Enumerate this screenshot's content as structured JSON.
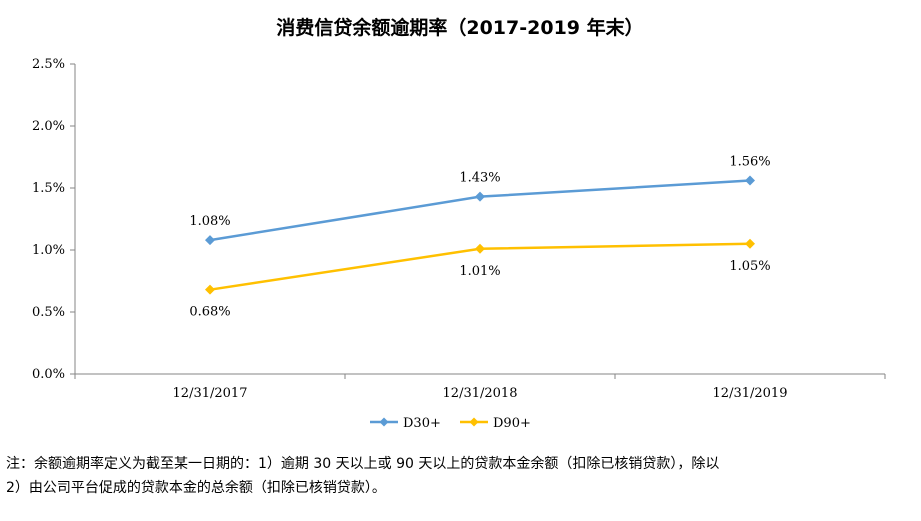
{
  "chart_data": {
    "type": "line",
    "title": "消费信贷余额逾期率（2017-2019 年末）",
    "categories": [
      "12/31/2017",
      "12/31/2018",
      "12/31/2019"
    ],
    "y_ticks": [
      "0.0%",
      "0.5%",
      "1.0%",
      "1.5%",
      "2.0%",
      "2.5%"
    ],
    "ylim": [
      0,
      2.5
    ],
    "grid": false,
    "legend_position": "bottom",
    "series": [
      {
        "name": "D30+",
        "color": "#5B9BD5",
        "marker": "diamond",
        "values": [
          1.08,
          1.43,
          1.56
        ],
        "labels": [
          "1.08%",
          "1.43%",
          "1.56%"
        ],
        "label_position": "above"
      },
      {
        "name": "D90+",
        "color": "#FFC000",
        "marker": "diamond",
        "values": [
          0.68,
          1.01,
          1.05
        ],
        "labels": [
          "0.68%",
          "1.01%",
          "1.05%"
        ],
        "label_position": "below"
      }
    ]
  },
  "note": {
    "line1": "注：余额逾期率定义为截至某一日期的：1）逾期 30 天以上或 90 天以上的贷款本金余额（扣除已核销贷款），除以",
    "line2": "2）由公司平台促成的贷款本金的总余额（扣除已核销贷款）。"
  }
}
